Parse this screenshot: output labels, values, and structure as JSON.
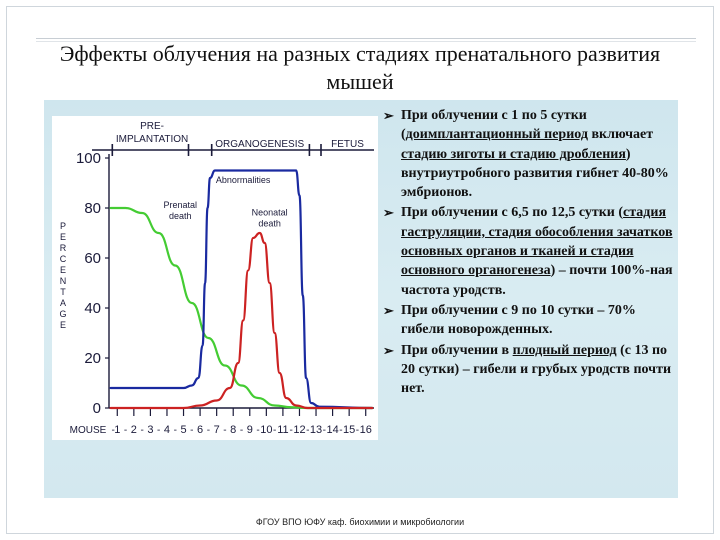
{
  "title": "Эффекты облучения на разных стадиях пренатального развития мышей",
  "footer": "ФГОУ ВПО ЮФУ каф. биохимии и микробиологии",
  "bullets": [
    {
      "segments": [
        {
          "text": "При облучении с 1 по 5 сутки (",
          "underline": false
        },
        {
          "text": "доимплантационный период",
          "underline": true
        },
        {
          "text": " включает ",
          "underline": false
        },
        {
          "text": "стадию зиготы и стадию дробления",
          "underline": true
        },
        {
          "text": ") внутриутробного развития гибнет 40-80% эмбрионов.",
          "underline": false
        }
      ]
    },
    {
      "segments": [
        {
          "text": "При облучении с 6,5 по 12,5 сутки (",
          "underline": false
        },
        {
          "text": "стадия гаструляции, стадия обособления зачатков основных органов и тканей и стадия основного органогенеза",
          "underline": true
        },
        {
          "text": ") – почти 100%-ная частота уродств.",
          "underline": false
        }
      ]
    },
    {
      "segments": [
        {
          "text": "При облучении с 9 по 10 сутки – 70% гибели новорожденных.",
          "underline": false
        }
      ]
    },
    {
      "segments": [
        {
          "text": "При облучении в ",
          "underline": false
        },
        {
          "text": "плодный период",
          "underline": true
        },
        {
          "text": " (с 13 по 20 сутки) – гибели и грубых уродств почти нет.",
          "underline": false
        }
      ]
    }
  ],
  "chart_data": {
    "type": "line",
    "stage_labels": [
      "PRE-\nIMPLANTATION",
      "ORGANOGENESIS",
      "FETUS"
    ],
    "ylabel": "PERCENTAGE",
    "xlabel": "MOUSE",
    "x_ticks": [
      1,
      2,
      3,
      4,
      5,
      6,
      7,
      8,
      9,
      10,
      11,
      12,
      13,
      14,
      15,
      16
    ],
    "y_ticks": [
      0,
      20,
      40,
      60,
      80,
      100
    ],
    "ylim": [
      0,
      100
    ],
    "xlim": [
      0.5,
      16.5
    ],
    "series": [
      {
        "name": "Prenatal death",
        "color": "#44cc33",
        "points": [
          [
            0.6,
            80
          ],
          [
            1.5,
            80
          ],
          [
            2.5,
            78
          ],
          [
            3.5,
            70
          ],
          [
            4.5,
            57
          ],
          [
            5.5,
            42
          ],
          [
            6.5,
            28
          ],
          [
            7.5,
            17
          ],
          [
            8.5,
            9
          ],
          [
            9.5,
            4
          ],
          [
            10.5,
            1
          ],
          [
            11.5,
            0.3
          ],
          [
            12.5,
            0
          ],
          [
            16.4,
            0
          ]
        ]
      },
      {
        "name": "Abnormalities",
        "color": "#1a2aa0",
        "points": [
          [
            0.6,
            8
          ],
          [
            5.0,
            8
          ],
          [
            5.5,
            9
          ],
          [
            5.9,
            12
          ],
          [
            6.15,
            25
          ],
          [
            6.3,
            50
          ],
          [
            6.45,
            80
          ],
          [
            6.6,
            92
          ],
          [
            6.9,
            95
          ],
          [
            8.5,
            95
          ],
          [
            10.5,
            95
          ],
          [
            11.8,
            95
          ],
          [
            12.0,
            85
          ],
          [
            12.2,
            45
          ],
          [
            12.4,
            12
          ],
          [
            12.7,
            2
          ],
          [
            13.2,
            0.5
          ],
          [
            16.4,
            0
          ]
        ]
      },
      {
        "name": "Neonatal death",
        "color": "#cc2222",
        "points": [
          [
            0.6,
            0
          ],
          [
            5.0,
            0
          ],
          [
            6.0,
            1
          ],
          [
            7.0,
            3
          ],
          [
            7.8,
            8
          ],
          [
            8.3,
            18
          ],
          [
            8.6,
            35
          ],
          [
            8.9,
            55
          ],
          [
            9.2,
            68
          ],
          [
            9.6,
            70
          ],
          [
            9.9,
            66
          ],
          [
            10.2,
            50
          ],
          [
            10.5,
            30
          ],
          [
            10.8,
            14
          ],
          [
            11.2,
            4
          ],
          [
            11.8,
            1
          ],
          [
            12.5,
            0
          ],
          [
            16.4,
            0
          ]
        ]
      }
    ],
    "annotations": [
      {
        "text": "Abnormalities",
        "series": "Abnormalities"
      },
      {
        "text": "Prenatal\ndeath",
        "series": "Prenatal death"
      },
      {
        "text": "Neonatal\ndeath",
        "series": "Neonatal death"
      }
    ]
  }
}
